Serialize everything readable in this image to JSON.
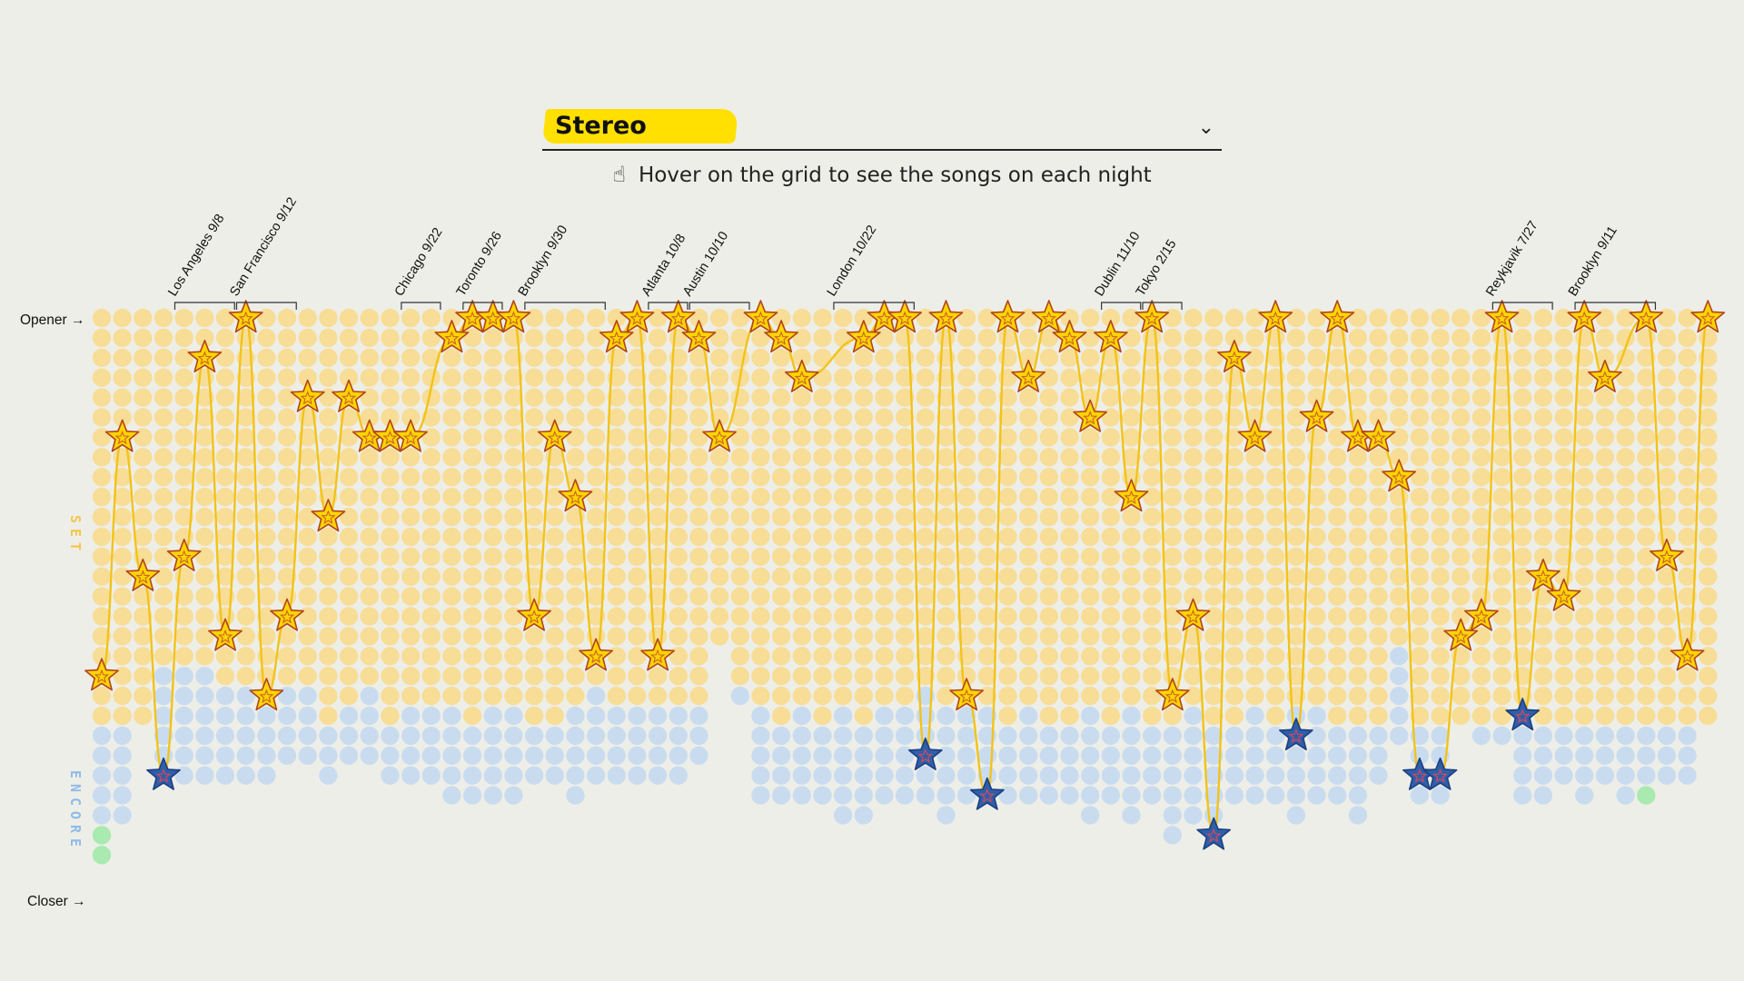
{
  "selector": {
    "selected": "Stereo",
    "chevron_icon": "chevron-down-icon"
  },
  "hint": {
    "icon": "hand-pointer-icon",
    "text": "Hover on the grid to see the songs on each night"
  },
  "colors": {
    "background": "#eeeee8",
    "set": "#f7dd96",
    "encore": "#c9dcef",
    "closer": "#a8eab0",
    "line": "#f2c318",
    "star_set": "#ffd400",
    "star_encore": "#2f5fa8",
    "set_label": "#f4c54a",
    "encore_label": "#8fbbe8"
  },
  "chart_data": {
    "type": "scatter",
    "y_top_label": "Opener →",
    "y_bottom_label": "Closer →",
    "section_labels": {
      "set": "SET",
      "encore": "ENCORE"
    },
    "columns": [
      {
        "set": 21,
        "encore": 5,
        "closer": 2,
        "pos": 19
      },
      {
        "set": 21,
        "encore": 5,
        "pos": 7
      },
      {
        "set": 21,
        "pos": 14
      },
      {
        "set": 18,
        "encore": 6,
        "pos": 24
      },
      {
        "set": 18,
        "encore": 6,
        "pos": 13
      },
      {
        "set": 18,
        "encore": 6,
        "pos": 3
      },
      {
        "set": 19,
        "encore": 5,
        "pos": 17
      },
      {
        "set": 19,
        "encore": 5,
        "pos": 1
      },
      {
        "set": 20,
        "encore": 4,
        "pos": 20
      },
      {
        "set": 19,
        "encore": 4,
        "pos": 16
      },
      {
        "set": 19,
        "encore": 4,
        "pos": 5
      },
      {
        "set": 21,
        "encore": 3,
        "pos": 11
      },
      {
        "set": 20,
        "encore": 3,
        "pos": 5
      },
      {
        "set": 19,
        "encore": 4,
        "pos": 7
      },
      {
        "set": 21,
        "encore": 3,
        "pos": 7
      },
      {
        "set": 20,
        "encore": 4,
        "pos": 7
      },
      {
        "set": 20,
        "encore": 4
      },
      {
        "set": 20,
        "encore": 5,
        "pos": 2
      },
      {
        "set": 21,
        "encore": 4,
        "pos": 1
      },
      {
        "set": 20,
        "encore": 5,
        "pos": 1
      },
      {
        "set": 20,
        "encore": 5,
        "pos": 1
      },
      {
        "set": 21,
        "encore": 3,
        "pos": 16
      },
      {
        "set": 21,
        "encore": 3,
        "pos": 7
      },
      {
        "set": 20,
        "encore": 5,
        "pos": 10
      },
      {
        "set": 19,
        "encore": 5,
        "pos": 18
      },
      {
        "set": 20,
        "encore": 4,
        "pos": 2
      },
      {
        "set": 20,
        "encore": 4,
        "pos": 1
      },
      {
        "set": 20,
        "encore": 4,
        "pos": 18
      },
      {
        "set": 20,
        "encore": 4,
        "pos": 1
      },
      {
        "set": 20,
        "encore": 3,
        "pos": 2
      },
      {
        "set": 17,
        "pos": 7
      },
      {
        "set": 19,
        "encore": 1
      },
      {
        "set": 20,
        "encore": 5,
        "pos": 1
      },
      {
        "set": 21,
        "encore": 4,
        "pos": 2
      },
      {
        "set": 20,
        "encore": 5,
        "pos": 4
      },
      {
        "set": 21,
        "encore": 4
      },
      {
        "set": 20,
        "encore": 6
      },
      {
        "set": 21,
        "encore": 5,
        "pos": 2
      },
      {
        "set": 20,
        "encore": 5,
        "pos": 1
      },
      {
        "set": 20,
        "encore": 5,
        "pos": 1
      },
      {
        "set": 19,
        "encore": 6,
        "pos": 23
      },
      {
        "set": 20,
        "encore": 6,
        "pos": 1
      },
      {
        "set": 20,
        "encore": 5,
        "pos": 20
      },
      {
        "set": 20,
        "encore": 5,
        "pos": 25
      },
      {
        "set": 21,
        "encore": 4,
        "pos": 1
      },
      {
        "set": 20,
        "encore": 5,
        "pos": 4
      },
      {
        "set": 21,
        "encore": 4,
        "pos": 1
      },
      {
        "set": 21,
        "encore": 4,
        "pos": 2
      },
      {
        "set": 20,
        "encore": 6,
        "pos": 6
      },
      {
        "set": 21,
        "encore": 4,
        "pos": 2
      },
      {
        "set": 20,
        "encore": 6,
        "pos": 10
      },
      {
        "set": 21,
        "encore": 4,
        "pos": 1
      },
      {
        "set": 21,
        "encore": 6,
        "pos": 20
      },
      {
        "set": 20,
        "encore": 6,
        "pos": 16
      },
      {
        "set": 21,
        "encore": 6,
        "pos": 27
      },
      {
        "set": 21,
        "encore": 4,
        "pos": 3
      },
      {
        "set": 20,
        "encore": 5,
        "pos": 7
      },
      {
        "set": 21,
        "encore": 4,
        "pos": 1
      },
      {
        "set": 20,
        "encore": 6,
        "pos": 22
      },
      {
        "set": 20,
        "encore": 5,
        "pos": 6
      },
      {
        "set": 21,
        "encore": 4,
        "pos": 1
      },
      {
        "set": 21,
        "encore": 5,
        "pos": 7
      },
      {
        "set": 21,
        "encore": 3,
        "pos": 7
      },
      {
        "set": 17,
        "encore": 5,
        "pos": 9
      },
      {
        "set": 21,
        "encore": 4,
        "pos": 24
      },
      {
        "set": 21,
        "encore": 4,
        "pos": 24
      },
      {
        "set": 21,
        "pos": 17
      },
      {
        "set": 21,
        "encore": 1,
        "pos": 16
      },
      {
        "set": 21,
        "encore": 1,
        "pos": 1
      },
      {
        "set": 20,
        "encore": 5,
        "pos": 21
      },
      {
        "set": 21,
        "encore": 4,
        "pos": 14
      },
      {
        "set": 21,
        "encore": 3,
        "pos": 15
      },
      {
        "set": 21,
        "encore": 4,
        "pos": 1
      },
      {
        "set": 21,
        "encore": 3,
        "pos": 4
      },
      {
        "set": 21,
        "encore": 4
      },
      {
        "set": 21,
        "encore": 3,
        "closer": 1,
        "pos": 1
      },
      {
        "set": 21,
        "encore": 3,
        "pos": 13
      },
      {
        "set": 21,
        "encore": 3,
        "pos": 18
      },
      {
        "set": 21,
        "pos": 1
      }
    ],
    "venues": [
      {
        "label": "Los Angeles 9/8",
        "from": 4,
        "to": 6
      },
      {
        "label": "San Francisco 9/12",
        "from": 7,
        "to": 9
      },
      {
        "label": "Chicago 9/22",
        "from": 15,
        "to": 16
      },
      {
        "label": "Toronto 9/26",
        "from": 18,
        "to": 19
      },
      {
        "label": "Brooklyn 9/30",
        "from": 21,
        "to": 24
      },
      {
        "label": "Atlanta 10/8",
        "from": 27,
        "to": 28
      },
      {
        "label": "Austin 10/10",
        "from": 29,
        "to": 31
      },
      {
        "label": "London 10/22",
        "from": 36,
        "to": 39
      },
      {
        "label": "Dublin 11/10",
        "from": 49,
        "to": 50
      },
      {
        "label": "Tokyo 2/15",
        "from": 51,
        "to": 52
      },
      {
        "label": "Reykjavik 7/27",
        "from": 68,
        "to": 70
      },
      {
        "label": "Brooklyn 9/11",
        "from": 72,
        "to": 75
      }
    ]
  }
}
